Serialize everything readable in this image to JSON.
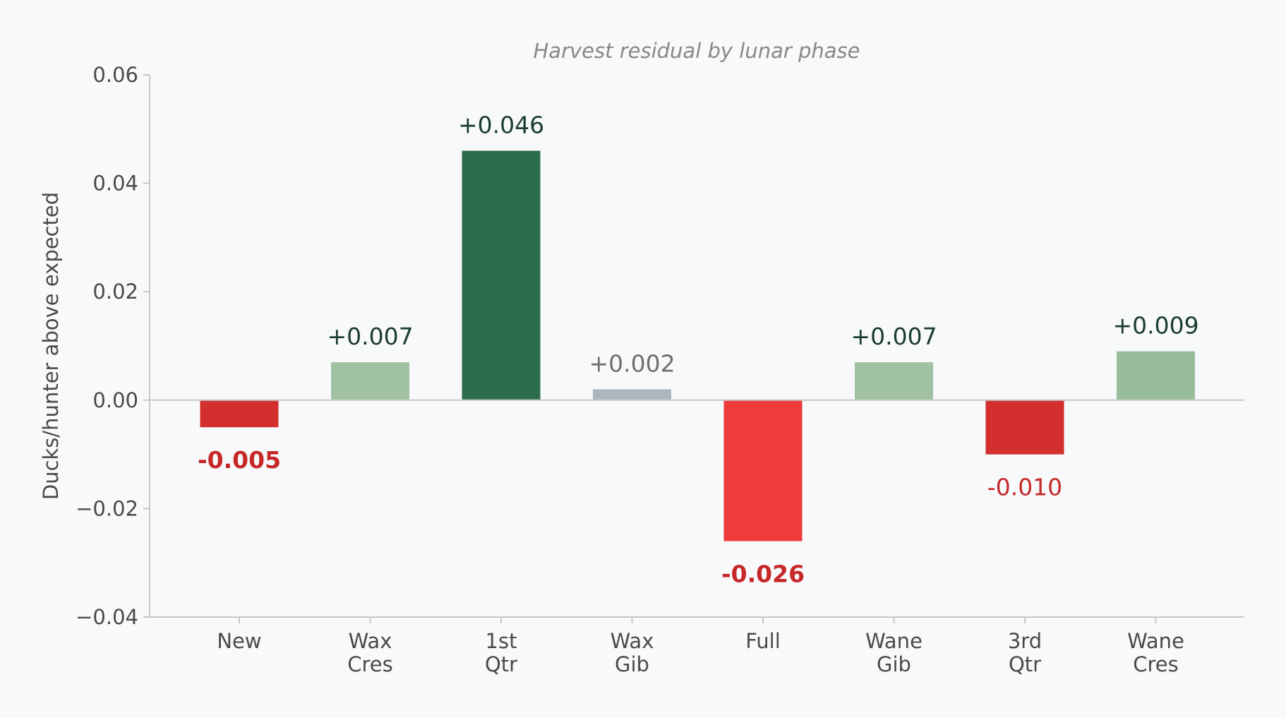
{
  "chart_data": {
    "type": "bar",
    "title": "Harvest residual by lunar phase",
    "xlabel": "",
    "ylabel": "Ducks/hunter above expected",
    "categories": [
      [
        "New"
      ],
      [
        "Wax",
        "Cres"
      ],
      [
        "1st",
        "Qtr"
      ],
      [
        "Wax",
        "Gib"
      ],
      [
        "Full"
      ],
      [
        "Wane",
        "Gib"
      ],
      [
        "3rd",
        "Qtr"
      ],
      [
        "Wane",
        "Cres"
      ]
    ],
    "values": [
      -0.005,
      0.007,
      0.046,
      0.002,
      -0.026,
      0.007,
      -0.01,
      0.009
    ],
    "value_labels": [
      "-0.005",
      "+0.007",
      "+0.046",
      "+0.002",
      "-0.026",
      "+0.007",
      "-0.010",
      "+0.009"
    ],
    "label_styles": [
      {
        "color": "#c62828",
        "weight": "bold"
      },
      {
        "color": "#1b3d2b",
        "weight": "normal"
      },
      {
        "color": "#1b3d2b",
        "weight": "normal"
      },
      {
        "color": "#6e6e6e",
        "weight": "normal"
      },
      {
        "color": "#c62828",
        "weight": "bold"
      },
      {
        "color": "#1b3d2b",
        "weight": "normal"
      },
      {
        "color": "#c62828",
        "weight": "normal"
      },
      {
        "color": "#1b3d2b",
        "weight": "normal"
      }
    ],
    "bar_colors": [
      "#d32f2f",
      "#a0c2a3",
      "#2c6e4b",
      "#adb5bd",
      "#ee3b3b",
      "#a0c2a3",
      "#d32f2f",
      "#98bd9b"
    ],
    "ylim": [
      -0.04,
      0.06
    ],
    "yticks": [
      -0.04,
      -0.02,
      0.0,
      0.02,
      0.04,
      0.06
    ],
    "ytick_labels": [
      "−0.04",
      "−0.02",
      "0.00",
      "0.02",
      "0.04",
      "0.06"
    ],
    "grid": false,
    "legend": "none",
    "zero_line": true
  }
}
